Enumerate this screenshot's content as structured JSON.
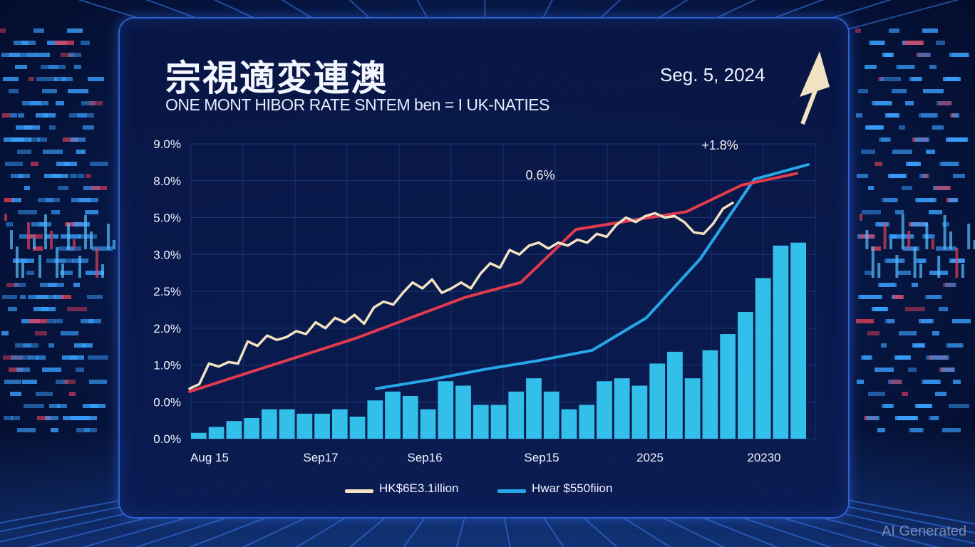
{
  "title": "宗視適変連澳",
  "date": "Seg. 5, 2024",
  "subtitle": "ONE MONT HIBOR RATE SNTEM ben = I UK-NATIES",
  "watermark": "AI Generated",
  "colors": {
    "cream_line": "#f3e2c2",
    "red_line": "#e23a4e",
    "blue_line": "#27a7e8",
    "bars": "#35c8f2",
    "background": "#071a4a"
  },
  "chart_data": {
    "type": "bar",
    "y_tick_labels": [
      "9.0%",
      "8.0%",
      "5.0%",
      "3.0%",
      "2.5%",
      "2.0%",
      "1.0%",
      "0.0%",
      "0.0%"
    ],
    "x_tick_labels": [
      "Aug 15",
      "Sep17",
      "Sep16",
      "Sep15",
      "2025",
      "20230"
    ],
    "annotations": [
      "0.6%",
      "+1.8%"
    ],
    "legend": [
      {
        "label": "HK$6E3.1illion",
        "color": "#f3e2c2"
      },
      {
        "label": "Hwar $550fiion",
        "color": "#27a7e8"
      }
    ],
    "bars": [
      0.2,
      0.4,
      0.6,
      0.7,
      1.0,
      1.0,
      0.85,
      0.85,
      1.0,
      0.75,
      1.3,
      1.6,
      1.45,
      1.0,
      1.95,
      1.8,
      1.15,
      1.15,
      1.6,
      2.05,
      1.6,
      1.0,
      1.15,
      1.95,
      2.05,
      1.8,
      2.55,
      2.95,
      2.05,
      3.0,
      3.55,
      4.3,
      5.45,
      6.55,
      6.65
    ],
    "series": [
      {
        "name": "HK$6E3.1illion",
        "values": [
          1.7,
          1.85,
          2.55,
          2.45,
          2.6,
          2.55,
          3.3,
          3.15,
          3.5,
          3.35,
          3.45,
          3.65,
          3.55,
          3.95,
          3.75,
          4.1,
          3.95,
          4.2,
          3.9,
          4.45,
          4.65,
          4.55,
          4.95,
          5.3,
          5.1,
          5.4,
          4.95,
          5.1,
          5.3,
          5.1,
          5.6,
          5.95,
          5.8,
          6.4,
          6.25,
          6.55,
          6.65,
          6.45,
          6.65,
          6.55,
          6.75,
          6.65,
          6.95,
          6.85,
          7.25,
          7.5,
          7.35,
          7.55,
          7.65,
          7.5,
          7.55,
          7.35,
          7.0,
          6.95,
          7.3,
          7.8,
          8.0
        ]
      },
      {
        "name": "",
        "values": [
          1.6,
          2.2,
          2.8,
          3.4,
          4.1,
          4.8,
          5.3,
          7.1,
          7.4,
          7.7,
          8.6,
          9.0
        ]
      },
      {
        "name": "Hwar $550fiion",
        "values": [
          1.7,
          2.0,
          2.35,
          2.65,
          3.0,
          4.1,
          6.1,
          8.8,
          9.3
        ]
      }
    ]
  }
}
